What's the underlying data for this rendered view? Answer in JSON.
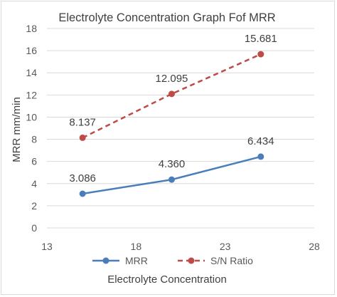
{
  "chart_data": {
    "type": "line",
    "title": "Electrolyte Concentration  Graph Fof MRR",
    "xlabel": "Electrolyte Concentration",
    "ylabel": "MRR mm/min",
    "xlim": [
      13,
      28
    ],
    "ylim": [
      0,
      18
    ],
    "xticks": [
      13,
      18,
      23,
      28
    ],
    "yticks": [
      0,
      2,
      4,
      6,
      8,
      10,
      12,
      14,
      16,
      18
    ],
    "grid": "horizontal",
    "legend": "bottom",
    "series": [
      {
        "name": "MRR",
        "color": "#4a7ebb",
        "style": "solid",
        "marker": "circle",
        "x": [
          15,
          20,
          25
        ],
        "y": [
          3.086,
          4.36,
          6.434
        ],
        "labels": [
          "3.086",
          "4.360",
          "6.434"
        ]
      },
      {
        "name": "S/N Ratio",
        "color": "#be4b48",
        "style": "dashed",
        "marker": "circle",
        "x": [
          15,
          20,
          25
        ],
        "y": [
          8.137,
          12.095,
          15.681
        ],
        "labels": [
          "8.137",
          "12.095",
          "15.681"
        ]
      }
    ]
  }
}
